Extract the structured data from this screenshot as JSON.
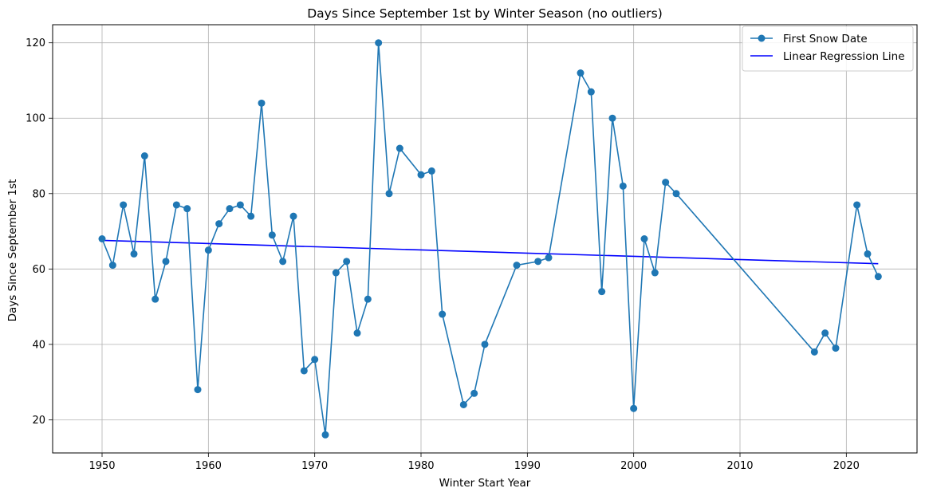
{
  "chart_data": {
    "type": "line",
    "title": "Days Since September 1st by Winter Season (no outliers)",
    "xlabel": "Winter Start Year",
    "ylabel": "Days Since September 1st",
    "xlim": [
      1945.35,
      2026.65
    ],
    "ylim": [
      11.2,
      124.8
    ],
    "xticks": [
      1950,
      1960,
      1970,
      1980,
      1990,
      2000,
      2010,
      2020
    ],
    "yticks": [
      20,
      40,
      60,
      80,
      100,
      120
    ],
    "grid": true,
    "legend_position": "top-right",
    "series": [
      {
        "name": "First Snow Date",
        "color": "#1f77b4",
        "marker": "circle",
        "x": [
          1950,
          1951,
          1952,
          1953,
          1954,
          1955,
          1956,
          1957,
          1958,
          1959,
          1960,
          1961,
          1962,
          1963,
          1964,
          1965,
          1966,
          1967,
          1968,
          1969,
          1970,
          1971,
          1972,
          1973,
          1974,
          1975,
          1976,
          1977,
          1978,
          1980,
          1981,
          1982,
          1984,
          1985,
          1986,
          1989,
          1991,
          1992,
          1995,
          1996,
          1997,
          1998,
          1999,
          2000,
          2001,
          2002,
          2003,
          2004,
          2017,
          2018,
          2019,
          2021,
          2022,
          2023
        ],
        "y": [
          68,
          61,
          77,
          64,
          90,
          52,
          62,
          77,
          76,
          28,
          65,
          72,
          76,
          77,
          74,
          104,
          69,
          62,
          74,
          33,
          36,
          16,
          59,
          62,
          43,
          52,
          120,
          80,
          92,
          85,
          86,
          48,
          24,
          27,
          40,
          61,
          62,
          63,
          112,
          107,
          54,
          100,
          82,
          23,
          68,
          59,
          83,
          80,
          38,
          43,
          39,
          77,
          64,
          58
        ]
      },
      {
        "name": "Linear Regression Line",
        "color": "#0000ff",
        "marker": "none",
        "x": [
          1950,
          2023
        ],
        "y": [
          67.6,
          61.4
        ]
      }
    ]
  }
}
